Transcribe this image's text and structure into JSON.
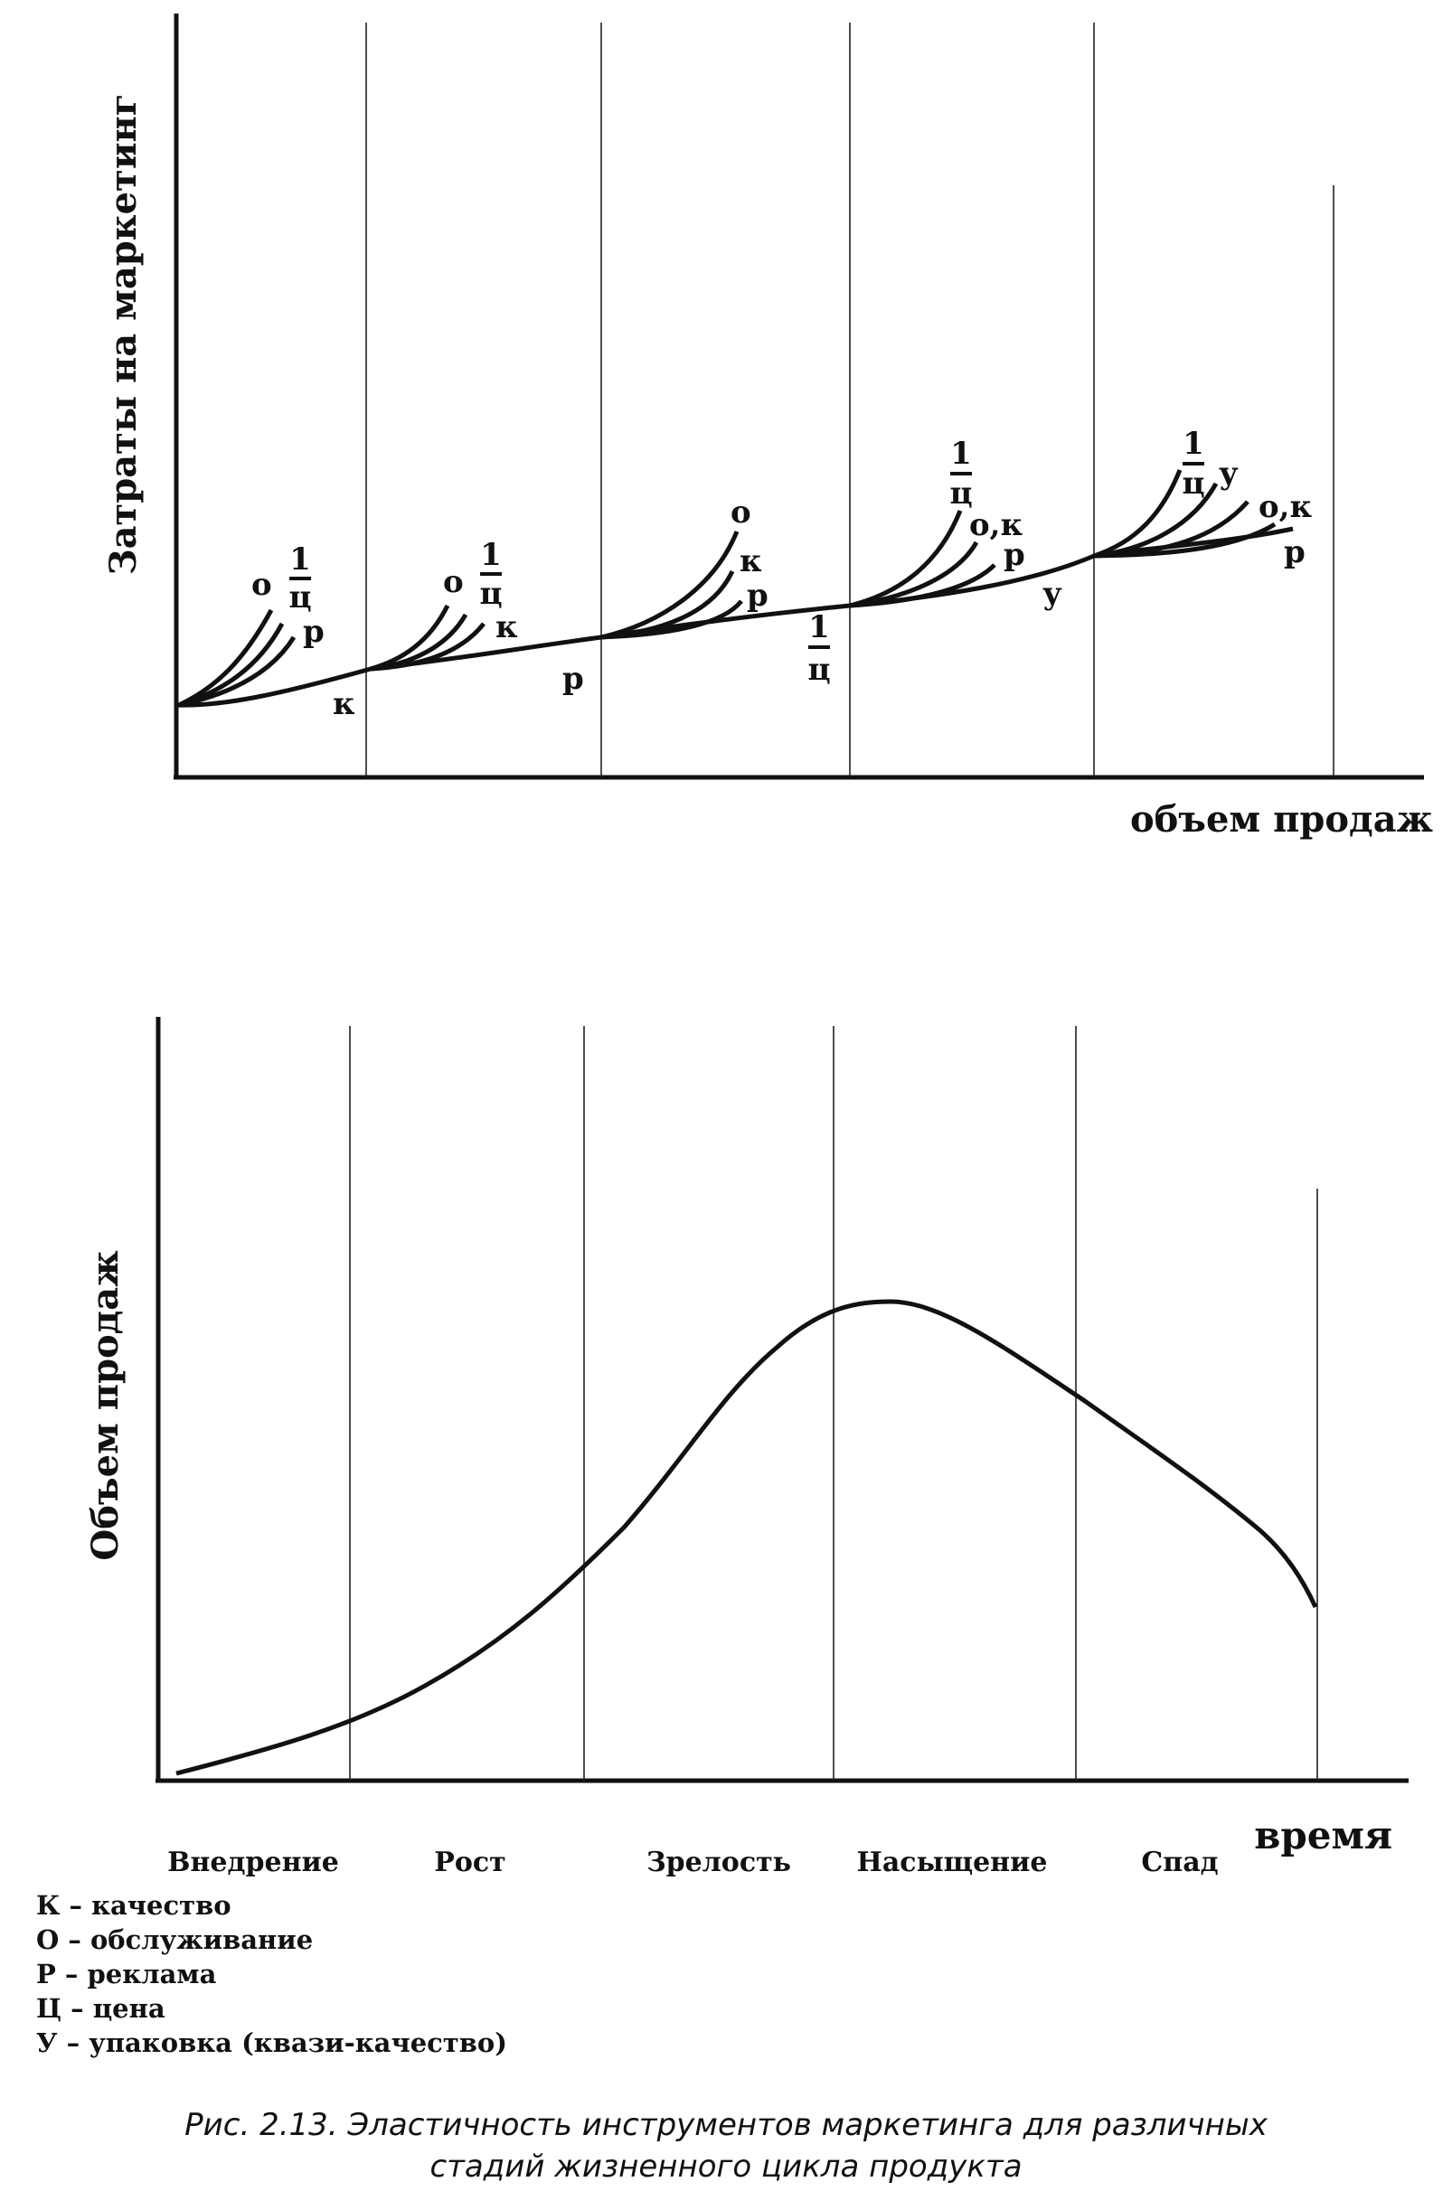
{
  "top_chart": {
    "y_axis_label": "Затраты на маркетинг",
    "x_axis_label": "объем продаж",
    "stage_fans": [
      {
        "baseline_label": "к",
        "branch_labels": [
          {
            "kind": "single",
            "text": "о"
          },
          {
            "kind": "fraction",
            "numerator": "1",
            "denominator": "ц"
          },
          {
            "kind": "single",
            "text": "р"
          }
        ]
      },
      {
        "baseline_label": "р",
        "branch_labels": [
          {
            "kind": "single",
            "text": "о"
          },
          {
            "kind": "fraction",
            "numerator": "1",
            "denominator": "ц"
          },
          {
            "kind": "single",
            "text": "к"
          }
        ]
      },
      {
        "baseline_label_fraction": {
          "numerator": "1",
          "denominator": "ц"
        },
        "branch_labels": [
          {
            "kind": "single",
            "text": "о"
          },
          {
            "kind": "single",
            "text": "к"
          },
          {
            "kind": "single",
            "text": "р"
          }
        ]
      },
      {
        "baseline_label": "у",
        "branch_labels": [
          {
            "kind": "fraction",
            "numerator": "1",
            "denominator": "ц"
          },
          {
            "kind": "single",
            "text": "о,к"
          },
          {
            "kind": "single",
            "text": "р"
          }
        ]
      },
      {
        "branch_labels": [
          {
            "kind": "fraction",
            "numerator": "1",
            "denominator": "ц"
          },
          {
            "kind": "single",
            "text": "у"
          },
          {
            "kind": "single",
            "text": "о,к"
          },
          {
            "kind": "single",
            "text": "р"
          }
        ]
      }
    ]
  },
  "bottom_chart": {
    "y_axis_label": "Объем продаж",
    "x_axis_label": "время",
    "stages": [
      "Внедрение",
      "Рост",
      "Зрелость",
      "Насыщение",
      "Спад"
    ]
  },
  "legend": [
    "К – качество",
    "О – обслуживание",
    "Р – реклама",
    "Ц – цена",
    "У – упаковка (квази-качество)"
  ],
  "caption": {
    "line1": "Рис. 2.13. Эластичность инструментов маркетинга для различных",
    "line2": "стадий жизненного цикла продукта"
  }
}
